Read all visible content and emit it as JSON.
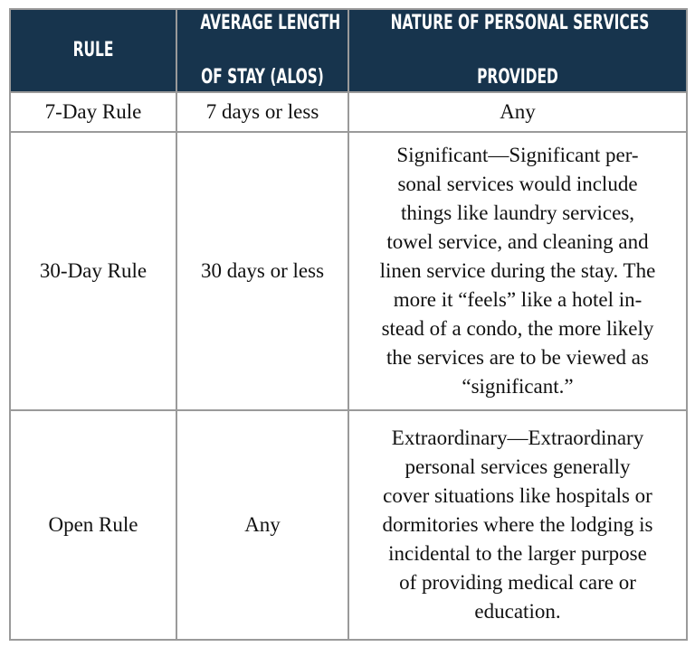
{
  "colors": {
    "header_bg": "#17344d",
    "header_text": "#ffffff",
    "border": "#9a9a9a"
  },
  "headers": [
    [
      "RULE"
    ],
    [
      "AVERAGE LENGTH",
      "OF STAY (ALOS)"
    ],
    [
      "NATURE OF PERSONAL SERVICES",
      "PROVIDED"
    ]
  ],
  "rows": [
    {
      "rule": "7-Day Rule",
      "alos": "7 days or less",
      "nature": [
        "Any"
      ]
    },
    {
      "rule": "30-Day Rule",
      "alos": "30 days or less",
      "nature": [
        "Significant—Significant per-",
        "sonal services would include",
        "things like laundry services,",
        "towel service, and cleaning and",
        "linen service during the stay. The",
        "more it “feels” like a hotel in-",
        "stead of a condo, the more likely",
        "the services are to be viewed as",
        "“significant.”"
      ]
    },
    {
      "rule": "Open Rule",
      "alos": "Any",
      "nature": [
        "Extraordinary—Extraordinary",
        "personal services generally",
        "cover situations like hospitals or",
        "dormitories where the lodging is",
        "incidental to the larger purpose",
        "of providing medical care or",
        "education."
      ]
    }
  ]
}
